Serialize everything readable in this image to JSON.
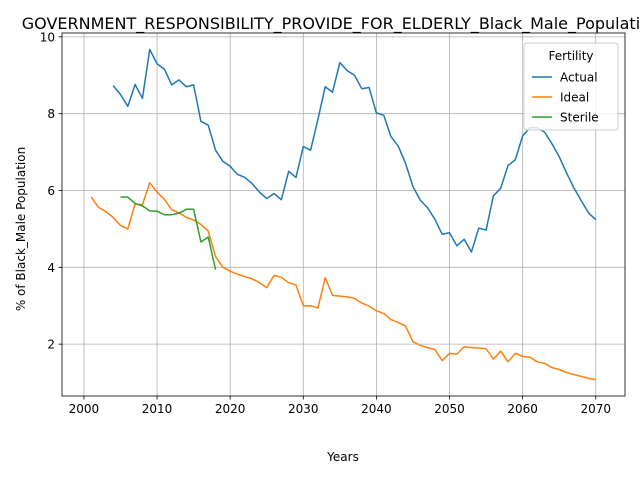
{
  "chart_data": {
    "type": "line",
    "title": "GOVERNMENT_RESPONSIBILITY_PROVIDE_FOR_ELDERLY_Black_Male_Population_S",
    "xlabel": "Years",
    "ylabel": "% of Black_Male Population",
    "xlim": [
      1997,
      2074
    ],
    "ylim": [
      0.65,
      10.1
    ],
    "xticks": [
      2000,
      2010,
      2020,
      2030,
      2040,
      2050,
      2060,
      2070
    ],
    "yticks": [
      2,
      4,
      6,
      8,
      10
    ],
    "grid": true,
    "legend": {
      "title": "Fertility",
      "position": "top-right"
    },
    "series": [
      {
        "name": "Actual",
        "color": "#1f77b4",
        "x": [
          2004,
          2005,
          2006,
          2007,
          2008,
          2009,
          2010,
          2011,
          2012,
          2013,
          2014,
          2015,
          2016,
          2017,
          2018,
          2019,
          2020,
          2021,
          2022,
          2023,
          2024,
          2025,
          2026,
          2027,
          2028,
          2029,
          2030,
          2031,
          2032,
          2033,
          2034,
          2035,
          2036,
          2037,
          2038,
          2039,
          2040,
          2041,
          2042,
          2043,
          2044,
          2045,
          2046,
          2047,
          2048,
          2049,
          2050,
          2051,
          2052,
          2053,
          2054,
          2055,
          2056,
          2057,
          2058,
          2059,
          2060,
          2061,
          2062,
          2063,
          2064,
          2065,
          2066,
          2067,
          2068,
          2069,
          2070
        ],
        "y": [
          8.73,
          8.5,
          8.19,
          8.76,
          8.4,
          9.67,
          9.3,
          9.16,
          8.75,
          8.88,
          8.7,
          8.75,
          7.8,
          7.7,
          7.05,
          6.76,
          6.63,
          6.42,
          6.34,
          6.18,
          5.96,
          5.79,
          5.92,
          5.76,
          6.5,
          6.34,
          7.14,
          7.05,
          7.85,
          8.7,
          8.56,
          9.33,
          9.12,
          9.0,
          8.65,
          8.68,
          8.02,
          7.96,
          7.4,
          7.15,
          6.7,
          6.1,
          5.75,
          5.55,
          5.25,
          4.86,
          4.9,
          4.56,
          4.73,
          4.4,
          5.02,
          4.97,
          5.86,
          6.06,
          6.65,
          6.8,
          7.42,
          7.64,
          7.63,
          7.52,
          7.22,
          6.88,
          6.46,
          6.07,
          5.74,
          5.42,
          5.24
        ]
      },
      {
        "name": "Ideal",
        "color": "#ff7f0e",
        "x": [
          2001,
          2002,
          2003,
          2004,
          2005,
          2006,
          2007,
          2008,
          2009,
          2010,
          2011,
          2012,
          2013,
          2014,
          2015,
          2016,
          2017,
          2018,
          2019,
          2020,
          2021,
          2022,
          2023,
          2024,
          2025,
          2026,
          2027,
          2028,
          2029,
          2030,
          2031,
          2032,
          2033,
          2034,
          2035,
          2036,
          2037,
          2038,
          2039,
          2040,
          2041,
          2042,
          2043,
          2044,
          2045,
          2046,
          2047,
          2048,
          2049,
          2050,
          2051,
          2052,
          2053,
          2054,
          2055,
          2056,
          2057,
          2058,
          2059,
          2060,
          2061,
          2062,
          2063,
          2064,
          2065,
          2066,
          2067,
          2068,
          2069,
          2070
        ],
        "y": [
          5.83,
          5.56,
          5.45,
          5.3,
          5.09,
          5.0,
          5.65,
          5.63,
          6.2,
          5.96,
          5.77,
          5.5,
          5.42,
          5.3,
          5.23,
          5.12,
          4.94,
          4.28,
          4.0,
          3.9,
          3.82,
          3.76,
          3.7,
          3.6,
          3.47,
          3.79,
          3.74,
          3.6,
          3.54,
          3.0,
          3.0,
          2.94,
          3.73,
          3.27,
          3.25,
          3.23,
          3.19,
          3.07,
          2.99,
          2.87,
          2.8,
          2.64,
          2.56,
          2.47,
          2.06,
          1.97,
          1.91,
          1.86,
          1.57,
          1.76,
          1.74,
          1.93,
          1.91,
          1.9,
          1.88,
          1.61,
          1.82,
          1.54,
          1.76,
          1.68,
          1.66,
          1.54,
          1.5,
          1.39,
          1.34,
          1.26,
          1.21,
          1.16,
          1.11,
          1.08
        ]
      },
      {
        "name": "Sterile",
        "color": "#2ca02c",
        "x": [
          2005,
          2006,
          2007,
          2008,
          2009,
          2010,
          2011,
          2012,
          2013,
          2014,
          2015,
          2016,
          2017,
          2018
        ],
        "y": [
          5.83,
          5.83,
          5.66,
          5.6,
          5.47,
          5.46,
          5.37,
          5.37,
          5.41,
          5.51,
          5.51,
          4.66,
          4.79,
          3.94
        ]
      }
    ]
  }
}
